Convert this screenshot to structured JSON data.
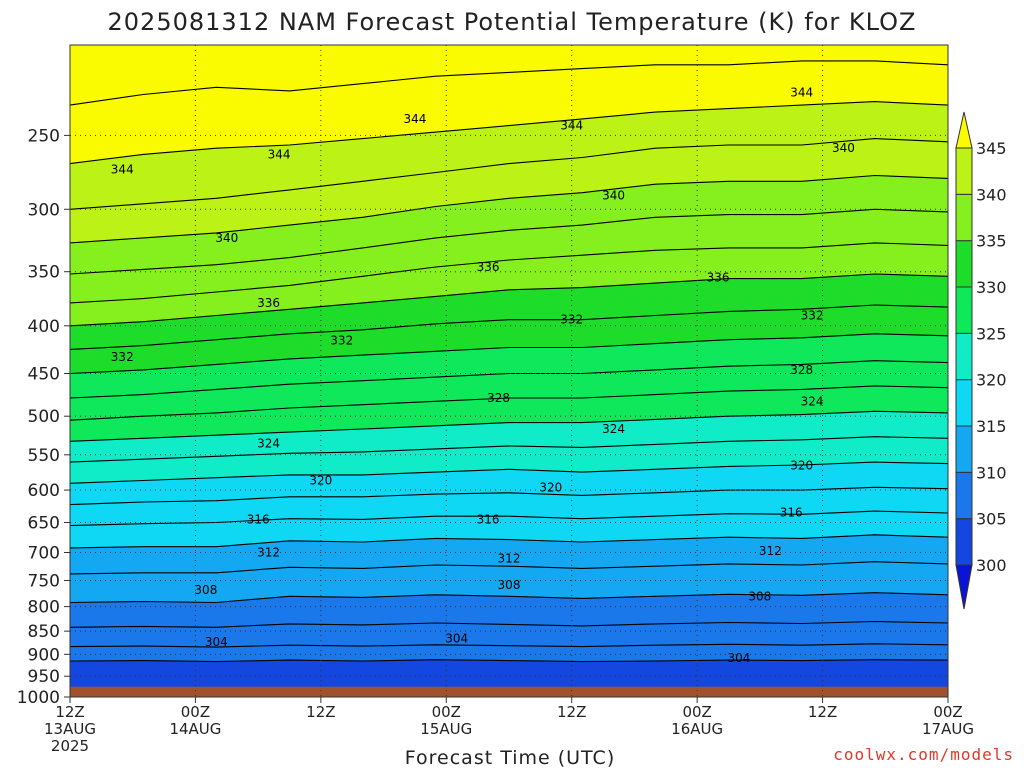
{
  "chart_data": {
    "type": "heatmap",
    "title": "2025081312 NAM Forecast Potential Temperature (K) for KLOZ",
    "xlabel": "Forecast Time (UTC)",
    "ylabel": "",
    "credit": "coolwx.com/models",
    "y_scale": "log",
    "y_inverted": true,
    "ylim": [
      1000,
      200
    ],
    "y_ticks": [
      250,
      300,
      350,
      400,
      450,
      500,
      550,
      600,
      650,
      700,
      750,
      800,
      850,
      900,
      950,
      1000
    ],
    "x_ticks": [
      {
        "hour": 0,
        "lines": [
          "12Z",
          "13AUG",
          "2025"
        ]
      },
      {
        "hour": 12,
        "lines": [
          "00Z",
          "14AUG"
        ]
      },
      {
        "hour": 24,
        "lines": [
          "12Z"
        ]
      },
      {
        "hour": 36,
        "lines": [
          "00Z",
          "15AUG"
        ]
      },
      {
        "hour": 48,
        "lines": [
          "12Z"
        ]
      },
      {
        "hour": 60,
        "lines": [
          "00Z",
          "16AUG"
        ]
      },
      {
        "hour": 72,
        "lines": [
          "12Z"
        ]
      },
      {
        "hour": 84,
        "lines": [
          "00Z",
          "17AUG"
        ]
      }
    ],
    "xlim": [
      0,
      84
    ],
    "grid": "dotted",
    "ground_level_pressure": 975,
    "ground_color": "#a0522d",
    "colorbar": {
      "levels": [
        300,
        305,
        310,
        315,
        320,
        325,
        330,
        335,
        340,
        345
      ],
      "colors": [
        "#0a14d6",
        "#1446e0",
        "#1a78ea",
        "#14a8f2",
        "#0ed8f4",
        "#10ecc8",
        "#0ee85a",
        "#1edc2a",
        "#86f01e",
        "#bcf216",
        "#fafa00"
      ],
      "extend": "both"
    },
    "contour_interval": 4,
    "isentropes": [
      {
        "theta": 304,
        "p": [
          915,
          914,
          916,
          913,
          915,
          912,
          914,
          916,
          915,
          913,
          914,
          912,
          913
        ]
      },
      {
        "theta": 306,
        "p": [
          883,
          882,
          884,
          880,
          882,
          879,
          881,
          883,
          880,
          878,
          880,
          877,
          879
        ]
      },
      {
        "theta": 308,
        "p": [
          842,
          840,
          842,
          835,
          837,
          833,
          836,
          839,
          835,
          832,
          834,
          830,
          833
        ]
      },
      {
        "theta": 310,
        "p": [
          792,
          790,
          792,
          780,
          782,
          777,
          780,
          784,
          780,
          776,
          778,
          773,
          777
        ]
      },
      {
        "theta": 312,
        "p": [
          738,
          736,
          736,
          726,
          728,
          722,
          724,
          728,
          724,
          720,
          722,
          716,
          720
        ]
      },
      {
        "theta": 314,
        "p": [
          692,
          690,
          690,
          680,
          682,
          676,
          678,
          682,
          678,
          674,
          676,
          670,
          674
        ]
      },
      {
        "theta": 316,
        "p": [
          655,
          652,
          650,
          644,
          645,
          640,
          640,
          644,
          640,
          636,
          637,
          632,
          635
        ]
      },
      {
        "theta": 318,
        "p": [
          622,
          618,
          616,
          610,
          610,
          606,
          604,
          608,
          604,
          600,
          600,
          596,
          598
        ]
      },
      {
        "theta": 320,
        "p": [
          590,
          586,
          582,
          578,
          578,
          574,
          570,
          574,
          570,
          566,
          564,
          560,
          562
        ]
      },
      {
        "theta": 322,
        "p": [
          560,
          556,
          552,
          548,
          546,
          542,
          538,
          540,
          536,
          532,
          530,
          526,
          528
        ]
      },
      {
        "theta": 324,
        "p": [
          532,
          528,
          524,
          520,
          516,
          512,
          508,
          508,
          504,
          500,
          498,
          494,
          496
        ]
      },
      {
        "theta": 326,
        "p": [
          505,
          500,
          496,
          490,
          486,
          482,
          478,
          478,
          474,
          470,
          468,
          464,
          466
        ]
      },
      {
        "theta": 328,
        "p": [
          478,
          474,
          468,
          462,
          458,
          454,
          450,
          450,
          446,
          442,
          440,
          436,
          438
        ]
      },
      {
        "theta": 330,
        "p": [
          450,
          446,
          440,
          434,
          430,
          426,
          422,
          422,
          418,
          414,
          412,
          408,
          410
        ]
      },
      {
        "theta": 332,
        "p": [
          424,
          420,
          414,
          408,
          404,
          398,
          394,
          394,
          390,
          386,
          384,
          380,
          382
        ]
      },
      {
        "theta": 334,
        "p": [
          400,
          396,
          390,
          384,
          378,
          372,
          366,
          364,
          360,
          356,
          356,
          352,
          354
        ]
      },
      {
        "theta": 336,
        "p": [
          378,
          374,
          368,
          362,
          354,
          346,
          340,
          336,
          332,
          330,
          330,
          326,
          328
        ]
      },
      {
        "theta": 338,
        "p": [
          352,
          348,
          344,
          338,
          330,
          322,
          316,
          312,
          306,
          304,
          304,
          300,
          302
        ]
      },
      {
        "theta": 340,
        "p": [
          326,
          322,
          318,
          312,
          306,
          298,
          292,
          288,
          282,
          280,
          280,
          276,
          278
        ]
      },
      {
        "theta": 342,
        "p": [
          300,
          296,
          292,
          286,
          280,
          274,
          268,
          264,
          258,
          256,
          256,
          252,
          254
        ]
      },
      {
        "theta": 344,
        "p": [
          268,
          262,
          258,
          256,
          252,
          248,
          244,
          240,
          236,
          234,
          232,
          230,
          232
        ]
      },
      {
        "theta": 346,
        "p": [
          232,
          226,
          222,
          224,
          220,
          216,
          214,
          212,
          210,
          210,
          208,
          208,
          210
        ]
      }
    ],
    "isentrope_hours": [
      0,
      7,
      14,
      21,
      28,
      35,
      42,
      49,
      56,
      63,
      70,
      77,
      84
    ],
    "contour_labels": [
      {
        "text": "344",
        "hour": 5,
        "p": 272
      },
      {
        "text": "344",
        "hour": 20,
        "p": 262
      },
      {
        "text": "344",
        "hour": 33,
        "p": 240
      },
      {
        "text": "344",
        "hour": 48,
        "p": 244
      },
      {
        "text": "344",
        "hour": 70,
        "p": 225
      },
      {
        "text": "340",
        "hour": 15,
        "p": 322
      },
      {
        "text": "340",
        "hour": 52,
        "p": 290
      },
      {
        "text": "340",
        "hour": 74,
        "p": 258
      },
      {
        "text": "336",
        "hour": 19,
        "p": 378
      },
      {
        "text": "336",
        "hour": 40,
        "p": 346
      },
      {
        "text": "336",
        "hour": 62,
        "p": 355
      },
      {
        "text": "332",
        "hour": 5,
        "p": 432
      },
      {
        "text": "332",
        "hour": 26,
        "p": 415
      },
      {
        "text": "332",
        "hour": 48,
        "p": 394
      },
      {
        "text": "332",
        "hour": 71,
        "p": 390
      },
      {
        "text": "328",
        "hour": 41,
        "p": 478
      },
      {
        "text": "328",
        "hour": 70,
        "p": 446
      },
      {
        "text": "324",
        "hour": 19,
        "p": 535
      },
      {
        "text": "324",
        "hour": 52,
        "p": 516
      },
      {
        "text": "324",
        "hour": 71,
        "p": 482
      },
      {
        "text": "320",
        "hour": 24,
        "p": 586
      },
      {
        "text": "320",
        "hour": 46,
        "p": 596
      },
      {
        "text": "320",
        "hour": 70,
        "p": 565
      },
      {
        "text": "316",
        "hour": 18,
        "p": 645
      },
      {
        "text": "316",
        "hour": 40,
        "p": 645
      },
      {
        "text": "316",
        "hour": 69,
        "p": 634
      },
      {
        "text": "312",
        "hour": 19,
        "p": 700
      },
      {
        "text": "312",
        "hour": 42,
        "p": 710
      },
      {
        "text": "312",
        "hour": 67,
        "p": 697
      },
      {
        "text": "308",
        "hour": 13,
        "p": 768
      },
      {
        "text": "308",
        "hour": 42,
        "p": 758
      },
      {
        "text": "308",
        "hour": 66,
        "p": 780
      },
      {
        "text": "304",
        "hour": 14,
        "p": 873
      },
      {
        "text": "304",
        "hour": 37,
        "p": 866
      },
      {
        "text": "304",
        "hour": 64,
        "p": 908
      }
    ]
  }
}
